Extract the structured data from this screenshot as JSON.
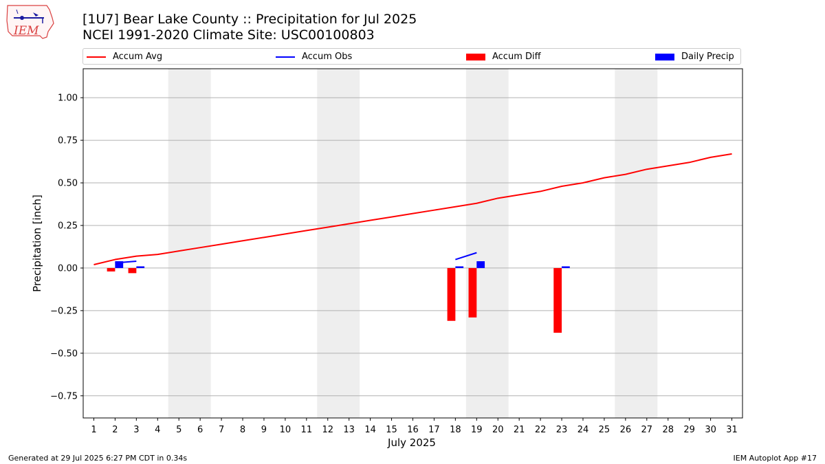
{
  "header": {
    "title_line1": "[1U7] Bear Lake County :: Precipitation for Jul 2025",
    "title_line2": "NCEI 1991-2020 Climate Site: USC00100803",
    "logo_text": "IEM"
  },
  "footer": {
    "generated": "Generated at 29 Jul 2025 6:27 PM CDT in 0.34s",
    "app": "IEM Autoplot App #17"
  },
  "colors": {
    "accum_avg": "#ff0000",
    "accum_obs": "#0000ff",
    "accum_diff": "#ff0000",
    "daily_precip": "#0000ff",
    "weekend_shade": "#eeeeee",
    "grid": "#b0b0b0"
  },
  "chart_data": {
    "type": "bar",
    "title": "[1U7] Bear Lake County :: Precipitation for Jul 2025",
    "xlabel": "July 2025",
    "ylabel": "Precipitation [inch]",
    "ylim": [
      -0.88,
      1.17
    ],
    "yticks": [
      1.0,
      0.75,
      0.5,
      0.25,
      0.0,
      -0.25,
      -0.5,
      -0.75
    ],
    "ytick_labels": [
      "1.00",
      "0.75",
      "0.50",
      "0.25",
      "0.00",
      "−0.25",
      "−0.50",
      "−0.75"
    ],
    "x": [
      1,
      2,
      3,
      4,
      5,
      6,
      7,
      8,
      9,
      10,
      11,
      12,
      13,
      14,
      15,
      16,
      17,
      18,
      19,
      20,
      21,
      22,
      23,
      24,
      25,
      26,
      27,
      28,
      29,
      30,
      31
    ],
    "xtick_labels": [
      "1",
      "2",
      "3",
      "4",
      "5",
      "6",
      "7",
      "8",
      "9",
      "10",
      "11",
      "12",
      "13",
      "14",
      "15",
      "16",
      "17",
      "18",
      "19",
      "20",
      "21",
      "22",
      "23",
      "24",
      "25",
      "26",
      "27",
      "28",
      "29",
      "30",
      "31"
    ],
    "weekend_spans": [
      [
        5,
        6
      ],
      [
        12,
        13
      ],
      [
        19,
        20
      ],
      [
        26,
        27
      ]
    ],
    "grid": true,
    "legend_position": "top",
    "legend": [
      "Accum Avg",
      "Accum Obs",
      "Accum Diff",
      "Daily Precip"
    ],
    "series": [
      {
        "name": "Accum Avg",
        "type": "line",
        "x": [
          1,
          2,
          3,
          4,
          5,
          6,
          7,
          8,
          9,
          10,
          11,
          12,
          13,
          14,
          15,
          16,
          17,
          18,
          19,
          20,
          21,
          22,
          23,
          24,
          25,
          26,
          27,
          28,
          29,
          30,
          31
        ],
        "values": [
          0.02,
          0.05,
          0.07,
          0.08,
          0.1,
          0.12,
          0.14,
          0.16,
          0.18,
          0.2,
          0.22,
          0.24,
          0.26,
          0.28,
          0.3,
          0.32,
          0.34,
          0.36,
          0.38,
          0.41,
          0.43,
          0.45,
          0.48,
          0.5,
          0.53,
          0.55,
          0.58,
          0.6,
          0.62,
          0.65,
          0.67
        ]
      },
      {
        "name": "Accum Obs",
        "type": "line",
        "segments": [
          {
            "x": [
              2,
              3
            ],
            "values": [
              0.03,
              0.04
            ]
          },
          {
            "x": [
              18,
              19
            ],
            "values": [
              0.05,
              0.09
            ]
          }
        ]
      },
      {
        "name": "Accum Diff",
        "type": "bar",
        "x": [
          2,
          3,
          18,
          19,
          23
        ],
        "values": [
          -0.02,
          -0.03,
          -0.31,
          -0.29,
          -0.38
        ]
      },
      {
        "name": "Daily Precip",
        "type": "bar",
        "x": [
          2,
          3,
          18,
          19,
          23
        ],
        "values": [
          0.04,
          0.01,
          0.01,
          0.04,
          0.01
        ]
      }
    ]
  }
}
